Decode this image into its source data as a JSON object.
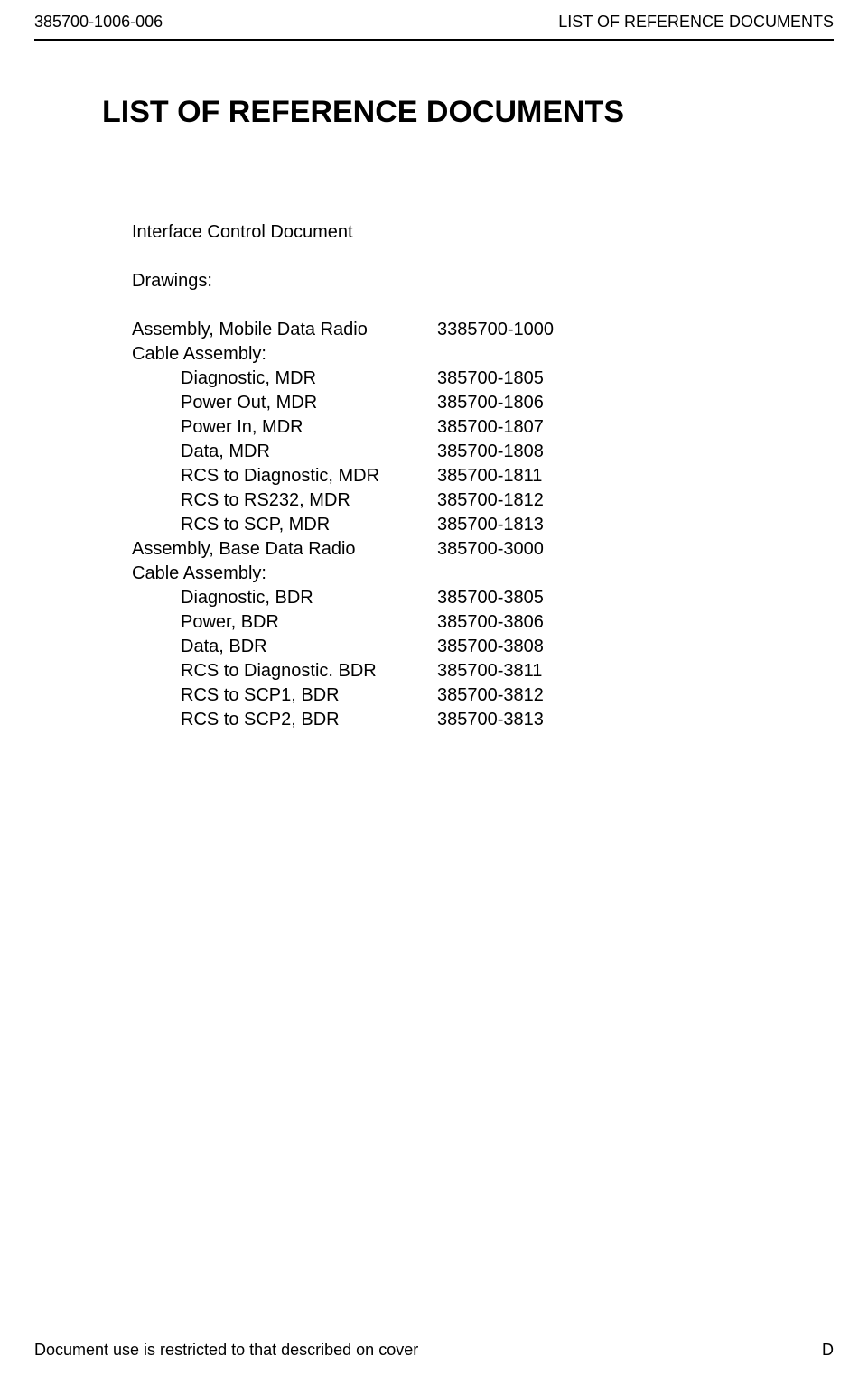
{
  "header": {
    "doc_number": "385700-1006-006",
    "section_title": "LIST OF REFERENCE DOCUMENTS"
  },
  "title": "LIST OF REFERENCE DOCUMENTS",
  "body": {
    "icd_label": "Interface Control Document",
    "drawings_label": "Drawings:",
    "rows": [
      {
        "label": "Assembly, Mobile Data Radio",
        "value": "3385700-1000",
        "indented": false
      },
      {
        "label": "Cable Assembly:",
        "value": "",
        "indented": false
      },
      {
        "label": "Diagnostic, MDR",
        "value": "385700-1805",
        "indented": true
      },
      {
        "label": "Power Out, MDR",
        "value": "385700-1806",
        "indented": true
      },
      {
        "label": "Power In, MDR",
        "value": "385700-1807",
        "indented": true
      },
      {
        "label": "Data, MDR",
        "value": "385700-1808",
        "indented": true
      },
      {
        "label": "RCS to Diagnostic, MDR",
        "value": "385700-1811",
        "indented": true
      },
      {
        "label": "RCS to RS232, MDR",
        "value": "385700-1812",
        "indented": true
      },
      {
        "label": "RCS to SCP, MDR",
        "value": "385700-1813",
        "indented": true
      },
      {
        "label": "Assembly, Base Data Radio",
        "value": "385700-3000",
        "indented": false
      },
      {
        "label": "Cable Assembly:",
        "value": "",
        "indented": false
      },
      {
        "label": "Diagnostic, BDR",
        "value": "385700-3805",
        "indented": true
      },
      {
        "label": "Power, BDR",
        "value": "385700-3806",
        "indented": true
      },
      {
        "label": "Data, BDR",
        "value": "385700-3808",
        "indented": true
      },
      {
        "label": "RCS to Diagnostic. BDR",
        "value": "385700-3811",
        "indented": true
      },
      {
        "label": "RCS to SCP1, BDR",
        "value": "385700-3812",
        "indented": true
      },
      {
        "label": "RCS to SCP2, BDR",
        "value": "385700-3813",
        "indented": true
      }
    ]
  },
  "footer": {
    "restriction": "Document use is restricted to that described on cover",
    "page_letter": "D"
  }
}
